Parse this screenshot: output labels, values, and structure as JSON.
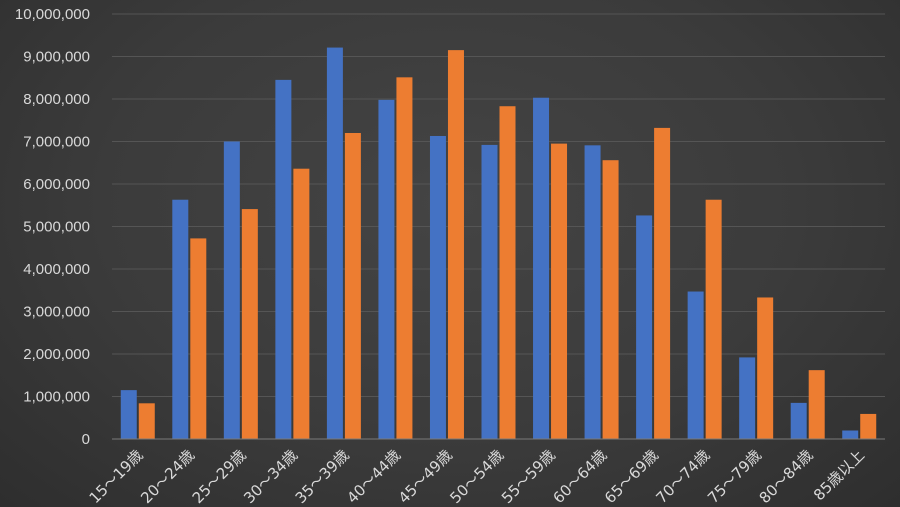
{
  "chart_data": {
    "type": "bar",
    "categories": [
      "15～19歳",
      "20～24歳",
      "25～29歳",
      "30～34歳",
      "35～39歳",
      "40～44歳",
      "45～49歳",
      "50～54歳",
      "55～59歳",
      "60～64歳",
      "65～69歳",
      "70～74歳",
      "75～79歳",
      "80～84歳",
      "85歳以上"
    ],
    "series": [
      {
        "color": "#4472c4",
        "values": [
          1150000,
          5630000,
          7000000,
          8450000,
          9210000,
          7980000,
          7130000,
          6920000,
          8030000,
          6910000,
          5260000,
          3470000,
          1920000,
          850000,
          200000
        ]
      },
      {
        "color": "#ed7d31",
        "values": [
          840000,
          4720000,
          5410000,
          6360000,
          7200000,
          8510000,
          9150000,
          7830000,
          6950000,
          6560000,
          7320000,
          5630000,
          3330000,
          1620000,
          590000
        ]
      }
    ],
    "ylim": [
      0,
      10000000
    ],
    "yticks": [
      "0",
      "1,000,000",
      "2,000,000",
      "3,000,000",
      "4,000,000",
      "5,000,000",
      "6,000,000",
      "7,000,000",
      "8,000,000",
      "9,000,000",
      "10,000,000"
    ],
    "grid": true,
    "title": "",
    "xlabel": "",
    "ylabel": ""
  }
}
